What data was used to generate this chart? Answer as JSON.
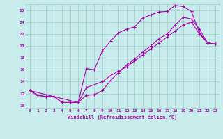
{
  "xlabel": "Windchill (Refroidissement éolien,°C)",
  "bg_color": "#c8ecec",
  "grid_color": "#a8d0d0",
  "line_color": "#aa00aa",
  "xlim": [
    -0.5,
    23.5
  ],
  "ylim": [
    9.5,
    27.0
  ],
  "xticks": [
    0,
    1,
    2,
    3,
    4,
    5,
    6,
    7,
    8,
    9,
    10,
    11,
    12,
    13,
    14,
    15,
    16,
    17,
    18,
    19,
    20,
    21,
    22,
    23
  ],
  "yticks": [
    10,
    12,
    14,
    16,
    18,
    20,
    22,
    24,
    26
  ],
  "line1_x": [
    0,
    1,
    2,
    3,
    4,
    5,
    6,
    7,
    8,
    9,
    10,
    11,
    12,
    13,
    14,
    15,
    16,
    17,
    18,
    19,
    20,
    21,
    22,
    23
  ],
  "line1_y": [
    12.5,
    11.7,
    11.5,
    11.5,
    10.5,
    10.5,
    10.5,
    16.2,
    16.0,
    19.2,
    20.8,
    22.2,
    22.8,
    23.2,
    24.7,
    25.2,
    25.7,
    25.8,
    26.8,
    26.6,
    25.8,
    22.2,
    20.5,
    20.3
  ],
  "line2_x": [
    0,
    1,
    2,
    3,
    4,
    5,
    6,
    7,
    8,
    9,
    10,
    11,
    12,
    13,
    14,
    15,
    16,
    17,
    18,
    19,
    20,
    21,
    22,
    23
  ],
  "line2_y": [
    12.5,
    11.7,
    11.5,
    11.5,
    10.5,
    10.5,
    10.5,
    11.7,
    11.8,
    12.5,
    14.2,
    15.5,
    16.8,
    17.8,
    19.0,
    20.0,
    21.2,
    22.0,
    23.5,
    24.8,
    24.5,
    22.8,
    20.5,
    20.3
  ],
  "line3_x": [
    0,
    3,
    6,
    7,
    9,
    10,
    11,
    12,
    13,
    14,
    15,
    16,
    17,
    18,
    19,
    20,
    21,
    22,
    23
  ],
  "line3_y": [
    12.5,
    11.5,
    10.5,
    13.0,
    14.0,
    15.0,
    15.8,
    16.5,
    17.5,
    18.5,
    19.5,
    20.5,
    21.5,
    22.5,
    23.5,
    24.0,
    22.0,
    20.5,
    20.3
  ]
}
